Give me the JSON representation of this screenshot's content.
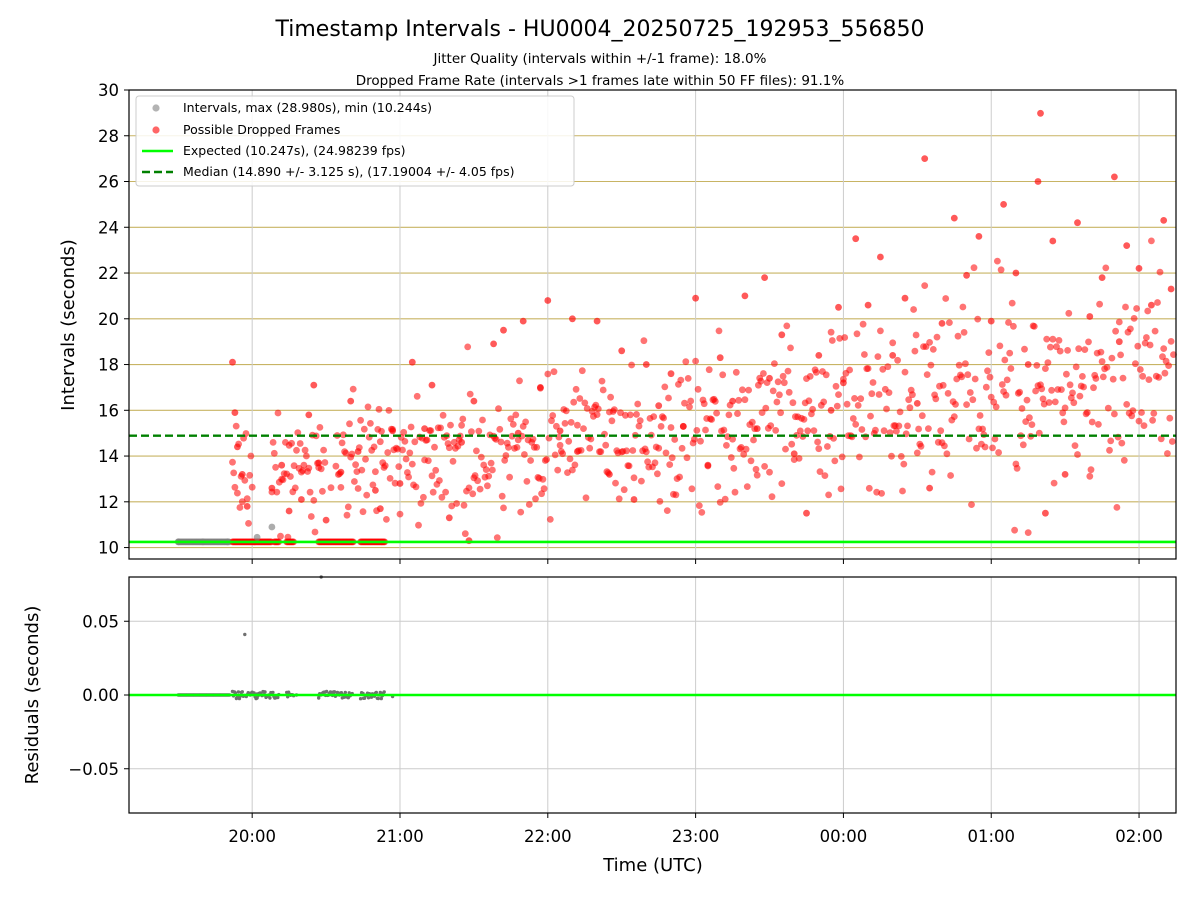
{
  "title": "Timestamp Intervals - HU0004_20250725_192953_556850",
  "subtitle_1": "Jitter Quality (intervals within +/-1 frame): 18.0%",
  "subtitle_2": "Dropped Frame Rate (intervals >1 frames late within 50 FF files): 91.1%",
  "colors": {
    "intervals": "#808080",
    "dropped": "#ff0000",
    "expected": "#00ff00",
    "median": "#008000",
    "hgrid": "#c8b464",
    "vgrid": "#cccccc"
  },
  "chart_data": [
    {
      "type": "scatter",
      "ylabel": "Intervals (seconds)",
      "ylim": [
        9.5,
        30.0
      ],
      "yticks": [
        "10",
        "12",
        "14",
        "16",
        "18",
        "20",
        "22",
        "24",
        "26",
        "28",
        "30"
      ],
      "x_axis": "time of day (UTC), 19:30 on 2025-07-25 through 02:00",
      "xlim": [
        "19:10",
        "02:15"
      ],
      "grid": true,
      "legend_position": "upper left",
      "legend": [
        "Intervals, max (28.980s), min (10.244s)",
        "Possible Dropped Frames",
        "Expected (10.247s), (24.98239 fps)",
        "Median (14.890 +/- 3.125 s), (17.19004 +/- 4.05 fps)"
      ],
      "expected_interval": 10.247,
      "median_interval": 14.89,
      "series": [
        {
          "name": "Intervals, max (28.980s), min (10.244s)",
          "points": [
            [
              "19:30",
              10.25
            ],
            [
              "19:40",
              10.25
            ],
            [
              "19:50",
              10.25
            ],
            [
              "20:02",
              10.45
            ],
            [
              "20:08",
              10.9
            ]
          ]
        },
        {
          "name": "Possible Dropped Frames",
          "points": [
            [
              "19:52",
              18.1
            ],
            [
              "19:53",
              15.9
            ],
            [
              "19:54",
              14.4
            ],
            [
              "19:56",
              13.2
            ],
            [
              "19:58",
              11.8
            ],
            [
              "20:08",
              12.6
            ],
            [
              "20:12",
              13.6
            ],
            [
              "20:15",
              11.6
            ],
            [
              "20:20",
              12.1
            ],
            [
              "20:23",
              15.8
            ],
            [
              "20:25",
              17.1
            ],
            [
              "20:27",
              13.7
            ],
            [
              "20:30",
              11.2
            ],
            [
              "20:36",
              13.3
            ],
            [
              "20:40",
              16.4
            ],
            [
              "20:43",
              14.2
            ],
            [
              "20:50",
              12.5
            ],
            [
              "20:52",
              11.7
            ],
            [
              "20:57",
              15.1
            ],
            [
              "21:00",
              12.8
            ],
            [
              "21:05",
              18.1
            ],
            [
              "21:10",
              15.2
            ],
            [
              "21:13",
              17.1
            ],
            [
              "21:20",
              11.3
            ],
            [
              "21:25",
              14.6
            ],
            [
              "21:28",
              10.3
            ],
            [
              "21:30",
              16.4
            ],
            [
              "21:38",
              18.9
            ],
            [
              "21:42",
              19.5
            ],
            [
              "21:48",
              15.0
            ],
            [
              "21:50",
              19.9
            ],
            [
              "21:57",
              17.0
            ],
            [
              "22:00",
              20.8
            ],
            [
              "22:05",
              15.1
            ],
            [
              "22:10",
              20.0
            ],
            [
              "22:12",
              14.2
            ],
            [
              "22:20",
              19.9
            ],
            [
              "22:25",
              13.2
            ],
            [
              "22:30",
              18.6
            ],
            [
              "22:35",
              12.1
            ],
            [
              "22:40",
              18.0
            ],
            [
              "22:45",
              16.2
            ],
            [
              "22:50",
              17.6
            ],
            [
              "22:55",
              15.3
            ],
            [
              "23:00",
              20.9
            ],
            [
              "23:05",
              13.6
            ],
            [
              "23:10",
              18.3
            ],
            [
              "23:15",
              16.4
            ],
            [
              "23:20",
              21.0
            ],
            [
              "23:25",
              15.2
            ],
            [
              "23:28",
              21.8
            ],
            [
              "23:30",
              17.4
            ],
            [
              "23:35",
              19.3
            ],
            [
              "23:40",
              14.1
            ],
            [
              "23:45",
              11.5
            ],
            [
              "23:50",
              18.4
            ],
            [
              "23:55",
              16.0
            ],
            [
              "23:58",
              20.5
            ],
            [
              "00:00",
              17.2
            ],
            [
              "00:05",
              23.5
            ],
            [
              "00:10",
              20.6
            ],
            [
              "00:15",
              22.7
            ],
            [
              "00:20",
              18.4
            ],
            [
              "00:25",
              20.9
            ],
            [
              "00:30",
              16.3
            ],
            [
              "00:33",
              27.0
            ],
            [
              "00:35",
              12.6
            ],
            [
              "00:40",
              19.8
            ],
            [
              "00:45",
              24.4
            ],
            [
              "00:50",
              21.9
            ],
            [
              "00:55",
              23.6
            ],
            [
              "01:00",
              19.9
            ],
            [
              "01:05",
              25.0
            ],
            [
              "01:10",
              22.0
            ],
            [
              "01:15",
              18.0
            ],
            [
              "01:19",
              26.0
            ],
            [
              "01:20",
              28.98
            ],
            [
              "01:22",
              11.5
            ],
            [
              "01:25",
              23.4
            ],
            [
              "01:30",
              13.2
            ],
            [
              "01:35",
              24.2
            ],
            [
              "01:40",
              20.1
            ],
            [
              "01:45",
              21.8
            ],
            [
              "01:50",
              26.2
            ],
            [
              "01:52",
              19.0
            ],
            [
              "01:55",
              23.2
            ],
            [
              "02:00",
              22.2
            ],
            [
              "02:05",
              20.6
            ],
            [
              "02:10",
              24.3
            ],
            [
              "02:13",
              21.3
            ]
          ]
        }
      ]
    },
    {
      "type": "scatter",
      "ylabel": "Residuals (seconds)",
      "xlabel": "Time (UTC)",
      "ylim": [
        -0.08,
        0.08
      ],
      "yticks": [
        "−0.05",
        "0.00",
        "0.05"
      ],
      "xticks": [
        "20:00",
        "21:00",
        "22:00",
        "23:00",
        "00:00",
        "01:00",
        "02:00"
      ],
      "grid": true,
      "series": [
        {
          "name": "Residuals",
          "points": [
            [
              "19:57",
              0.041
            ],
            [
              "20:28",
              0.08
            ],
            [
              "19:59",
              0.001
            ],
            [
              "20:02",
              -0.002
            ],
            [
              "20:05",
              0.002
            ],
            [
              "20:10",
              -0.001
            ],
            [
              "20:18",
              0.0
            ],
            [
              "20:27",
              -0.002
            ],
            [
              "20:33",
              0.002
            ],
            [
              "20:38",
              -0.001
            ],
            [
              "20:45",
              0.001
            ],
            [
              "20:52",
              0.0
            ],
            [
              "20:57",
              -0.001
            ]
          ]
        }
      ]
    }
  ]
}
